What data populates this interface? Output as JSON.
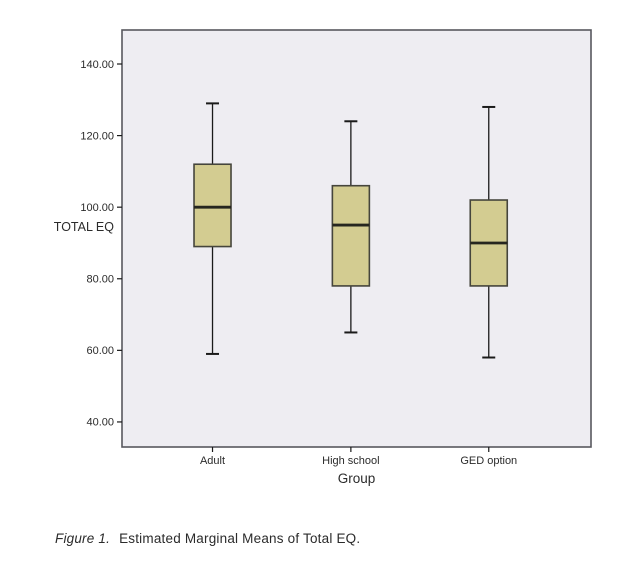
{
  "caption": {
    "figure_label": "Figure 1.",
    "text": "Estimated Marginal Means of Total EQ."
  },
  "chart_data": {
    "type": "boxplot",
    "title": "",
    "xlabel": "Group",
    "ylabel": "TOTAL EQ",
    "categories": [
      "Adult",
      "High school",
      "GED option"
    ],
    "boxes": [
      {
        "category": "Adult",
        "whisker_low": 59,
        "q1": 89,
        "median": 100,
        "q3": 112,
        "whisker_high": 129
      },
      {
        "category": "High school",
        "whisker_low": 65,
        "q1": 78,
        "median": 95,
        "q3": 106,
        "whisker_high": 124
      },
      {
        "category": "GED option",
        "whisker_low": 58,
        "q1": 78,
        "median": 90,
        "q3": 102,
        "whisker_high": 128
      }
    ],
    "yticks": [
      40,
      60,
      80,
      100,
      120,
      140
    ],
    "ytick_labels": [
      "40.00",
      "60.00",
      "80.00",
      "100.00",
      "120.00",
      "140.00"
    ],
    "ylim": [
      33,
      149.5
    ],
    "grid": false,
    "legend": "none",
    "colors": {
      "plot_background": "#eeedf2",
      "frame": "#58585e",
      "box_fill": "#d3cc91",
      "box_border": "#45453c",
      "median": "#26261f",
      "whisker": "#1a1a1a",
      "tick": "#1a1a1a",
      "text": "#2b2b2b"
    }
  }
}
